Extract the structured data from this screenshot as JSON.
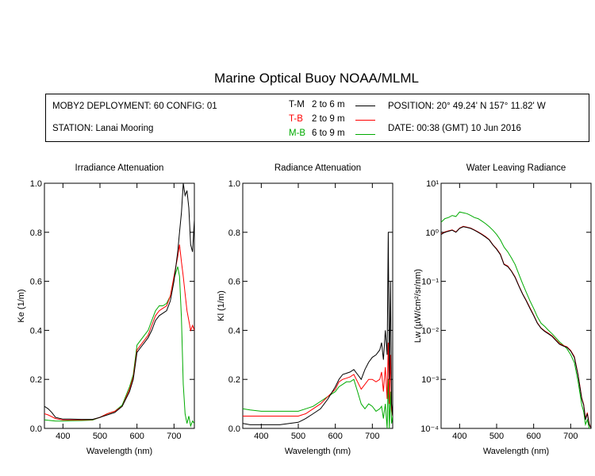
{
  "title": "Marine Optical Buoy NOAA/MLML",
  "info": {
    "deployment": "MOBY2 DEPLOYMENT: 60 CONFIG: 01",
    "station": "STATION: Lanai Mooring",
    "position": "POSITION: 20° 49.24' N   157° 11.82' W",
    "date": "DATE: 00:38 (GMT) 10 Jun 2016",
    "legend": [
      {
        "code": "T-M",
        "range": "2 to 6  m",
        "color": "#000000"
      },
      {
        "code": "T-B",
        "range": "2 to 9  m",
        "color": "#ff0000"
      },
      {
        "code": "M-B",
        "range": "6 to 9  m",
        "color": "#00aa00"
      }
    ]
  },
  "chart_data": [
    {
      "type": "line",
      "title": "Irradiance Attenuation",
      "xlabel": "Wavelength (nm)",
      "ylabel": "Ke  (1/m)",
      "xlim": [
        350,
        755
      ],
      "ylim": [
        0,
        1.0
      ],
      "xticks": [
        400,
        500,
        600,
        700
      ],
      "yticks": [
        "0.0",
        "0.2",
        "0.4",
        "0.6",
        "0.8",
        "1.0"
      ],
      "series": [
        {
          "name": "T-M",
          "color": "#000000",
          "x": [
            350,
            360,
            370,
            380,
            400,
            420,
            450,
            480,
            500,
            520,
            540,
            560,
            580,
            590,
            600,
            610,
            620,
            630,
            640,
            650,
            660,
            670,
            680,
            690,
            700,
            710,
            715,
            720,
            725,
            730,
            735,
            740,
            745,
            750,
            755
          ],
          "y": [
            0.09,
            0.08,
            0.065,
            0.045,
            0.038,
            0.038,
            0.037,
            0.037,
            0.045,
            0.055,
            0.065,
            0.09,
            0.15,
            0.2,
            0.31,
            0.33,
            0.35,
            0.37,
            0.4,
            0.44,
            0.46,
            0.47,
            0.48,
            0.52,
            0.6,
            0.72,
            0.8,
            0.88,
            1.0,
            0.95,
            0.97,
            0.9,
            0.75,
            0.72,
            0.85
          ]
        },
        {
          "name": "T-B",
          "color": "#ff0000",
          "x": [
            350,
            360,
            380,
            400,
            420,
            450,
            480,
            500,
            520,
            540,
            560,
            580,
            590,
            600,
            610,
            620,
            630,
            640,
            650,
            660,
            670,
            680,
            690,
            700,
            710,
            715,
            720,
            725,
            730,
            735,
            740,
            745,
            750,
            755
          ],
          "y": [
            0.06,
            0.055,
            0.04,
            0.035,
            0.035,
            0.035,
            0.036,
            0.045,
            0.06,
            0.07,
            0.09,
            0.16,
            0.21,
            0.32,
            0.34,
            0.36,
            0.38,
            0.42,
            0.46,
            0.48,
            0.49,
            0.5,
            0.54,
            0.62,
            0.7,
            0.75,
            0.68,
            0.62,
            0.55,
            0.48,
            0.44,
            0.4,
            0.42,
            0.4
          ]
        },
        {
          "name": "M-B",
          "color": "#00aa00",
          "x": [
            350,
            360,
            380,
            400,
            420,
            450,
            480,
            500,
            520,
            540,
            560,
            580,
            590,
            600,
            610,
            620,
            630,
            640,
            650,
            660,
            670,
            680,
            690,
            700,
            710,
            715,
            720,
            725,
            730,
            735,
            740,
            745,
            750,
            755
          ],
          "y": [
            0.035,
            0.033,
            0.03,
            0.03,
            0.031,
            0.032,
            0.034,
            0.045,
            0.06,
            0.07,
            0.095,
            0.17,
            0.22,
            0.34,
            0.36,
            0.38,
            0.4,
            0.44,
            0.48,
            0.5,
            0.5,
            0.51,
            0.54,
            0.61,
            0.66,
            0.62,
            0.45,
            0.18,
            0.06,
            0.02,
            0.05,
            0.01,
            0.03,
            0.02
          ]
        }
      ]
    },
    {
      "type": "line",
      "title": "Radiance Attenuation",
      "xlabel": "Wavelength (nm)",
      "ylabel": "Kl  (1/m)",
      "xlim": [
        350,
        755
      ],
      "ylim": [
        0,
        1.0
      ],
      "xticks": [
        400,
        500,
        600,
        700
      ],
      "yticks": [
        "0.0",
        "0.2",
        "0.4",
        "0.6",
        "0.8",
        "1.0"
      ],
      "series": [
        {
          "name": "T-M",
          "color": "#000000",
          "x": [
            350,
            370,
            400,
            450,
            500,
            520,
            540,
            560,
            580,
            600,
            610,
            620,
            630,
            640,
            650,
            660,
            670,
            680,
            690,
            700,
            710,
            720,
            725,
            730,
            735,
            740,
            743,
            746,
            749,
            752,
            755
          ],
          "y": [
            0.02,
            0.015,
            0.015,
            0.015,
            0.025,
            0.04,
            0.06,
            0.08,
            0.12,
            0.17,
            0.2,
            0.22,
            0.225,
            0.23,
            0.24,
            0.22,
            0.2,
            0.24,
            0.27,
            0.29,
            0.3,
            0.32,
            0.35,
            0.28,
            0.4,
            0.3,
            0.8,
            0.2,
            0.6,
            0.1,
            0.05
          ]
        },
        {
          "name": "T-B",
          "color": "#ff0000",
          "x": [
            350,
            370,
            400,
            450,
            500,
            520,
            540,
            560,
            580,
            600,
            610,
            620,
            630,
            640,
            650,
            660,
            670,
            680,
            690,
            700,
            710,
            720,
            725,
            730,
            735,
            740,
            743,
            746,
            749,
            752,
            755
          ],
          "y": [
            0.05,
            0.05,
            0.05,
            0.05,
            0.05,
            0.06,
            0.08,
            0.1,
            0.13,
            0.16,
            0.19,
            0.2,
            0.205,
            0.21,
            0.22,
            0.19,
            0.16,
            0.18,
            0.2,
            0.2,
            0.19,
            0.2,
            0.23,
            0.15,
            0.25,
            0.12,
            0.35,
            0.1,
            0.3,
            0.08,
            0.05
          ]
        },
        {
          "name": "M-B",
          "color": "#00aa00",
          "x": [
            350,
            370,
            400,
            450,
            500,
            520,
            540,
            560,
            580,
            600,
            610,
            620,
            630,
            640,
            650,
            660,
            670,
            680,
            690,
            700,
            710,
            720,
            725,
            730,
            735,
            740,
            743,
            746,
            749,
            752,
            755
          ],
          "y": [
            0.08,
            0.075,
            0.07,
            0.07,
            0.07,
            0.08,
            0.09,
            0.11,
            0.13,
            0.15,
            0.17,
            0.18,
            0.19,
            0.19,
            0.2,
            0.15,
            0.1,
            0.08,
            0.1,
            0.09,
            0.07,
            0.08,
            0.09,
            0.04,
            0.1,
            0.0,
            0.2,
            0.0,
            0.15,
            0.02,
            0.05
          ]
        }
      ]
    },
    {
      "type": "line",
      "title": "Water Leaving Radiance",
      "xlabel": "Wavelength (nm)",
      "ylabel": "Lw  (µW/cm²/sr/nm)",
      "xlim": [
        350,
        755
      ],
      "yscale": "log",
      "ylim": [
        0.0001,
        10
      ],
      "xticks": [
        400,
        500,
        600,
        700
      ],
      "yticks": [
        "10⁻⁴",
        "10⁻³",
        "10⁻²",
        "10⁻¹",
        "10⁰",
        "10¹"
      ],
      "series": [
        {
          "name": "T-M",
          "color": "#000000",
          "x": [
            350,
            360,
            370,
            380,
            390,
            400,
            410,
            420,
            430,
            440,
            450,
            460,
            470,
            480,
            490,
            500,
            510,
            520,
            530,
            540,
            550,
            560,
            570,
            580,
            590,
            600,
            610,
            620,
            630,
            640,
            650,
            660,
            670,
            680,
            690,
            700,
            710,
            720,
            730,
            735,
            740,
            745,
            750,
            755
          ],
          "y": [
            0.9,
            1.0,
            1.05,
            1.1,
            1.0,
            1.2,
            1.3,
            1.25,
            1.2,
            1.1,
            1.0,
            0.9,
            0.8,
            0.7,
            0.55,
            0.45,
            0.35,
            0.22,
            0.2,
            0.16,
            0.12,
            0.08,
            0.055,
            0.04,
            0.028,
            0.02,
            0.014,
            0.011,
            0.0095,
            0.0085,
            0.0075,
            0.0062,
            0.0052,
            0.0048,
            0.0045,
            0.0038,
            0.0028,
            0.0012,
            0.0004,
            0.0003,
            0.00015,
            0.0002,
            0.00012,
            0.0001
          ]
        },
        {
          "name": "T-B",
          "color": "#ff0000",
          "x": [
            350,
            360,
            370,
            380,
            390,
            400,
            410,
            420,
            430,
            440,
            450,
            460,
            470,
            480,
            490,
            500,
            510,
            520,
            530,
            540,
            550,
            560,
            570,
            580,
            590,
            600,
            610,
            620,
            630,
            640,
            650,
            660,
            670,
            680,
            690,
            700,
            710,
            720,
            730,
            735,
            740,
            745,
            750,
            755
          ],
          "y": [
            0.92,
            1.02,
            1.07,
            1.12,
            1.02,
            1.22,
            1.32,
            1.27,
            1.22,
            1.12,
            1.02,
            0.92,
            0.82,
            0.71,
            0.56,
            0.46,
            0.36,
            0.225,
            0.205,
            0.163,
            0.123,
            0.082,
            0.056,
            0.041,
            0.029,
            0.0205,
            0.0143,
            0.0112,
            0.0097,
            0.0087,
            0.0077,
            0.0064,
            0.0054,
            0.0049,
            0.0046,
            0.0039,
            0.0029,
            0.00125,
            0.00042,
            0.00031,
            0.00016,
            0.00021,
            0.000125,
            0.0001
          ]
        },
        {
          "name": "M-B",
          "color": "#00aa00",
          "x": [
            350,
            360,
            370,
            380,
            390,
            400,
            410,
            420,
            430,
            440,
            450,
            460,
            470,
            480,
            490,
            500,
            510,
            520,
            530,
            540,
            550,
            560,
            570,
            580,
            590,
            600,
            610,
            620,
            630,
            640,
            650,
            660,
            670,
            680,
            690,
            700,
            710,
            720,
            730,
            735,
            740,
            745,
            750,
            755
          ],
          "y": [
            1.6,
            1.9,
            2.0,
            2.2,
            2.1,
            2.6,
            2.5,
            2.4,
            2.2,
            2.0,
            1.9,
            1.7,
            1.5,
            1.3,
            1.1,
            0.9,
            0.7,
            0.5,
            0.4,
            0.3,
            0.22,
            0.14,
            0.09,
            0.06,
            0.04,
            0.028,
            0.019,
            0.014,
            0.012,
            0.01,
            0.0085,
            0.007,
            0.0058,
            0.005,
            0.0042,
            0.0032,
            0.0022,
            0.0009,
            0.0003,
            0.00022,
            0.00012,
            0.00015,
            0.0001,
            0.0001
          ]
        }
      ]
    }
  ]
}
